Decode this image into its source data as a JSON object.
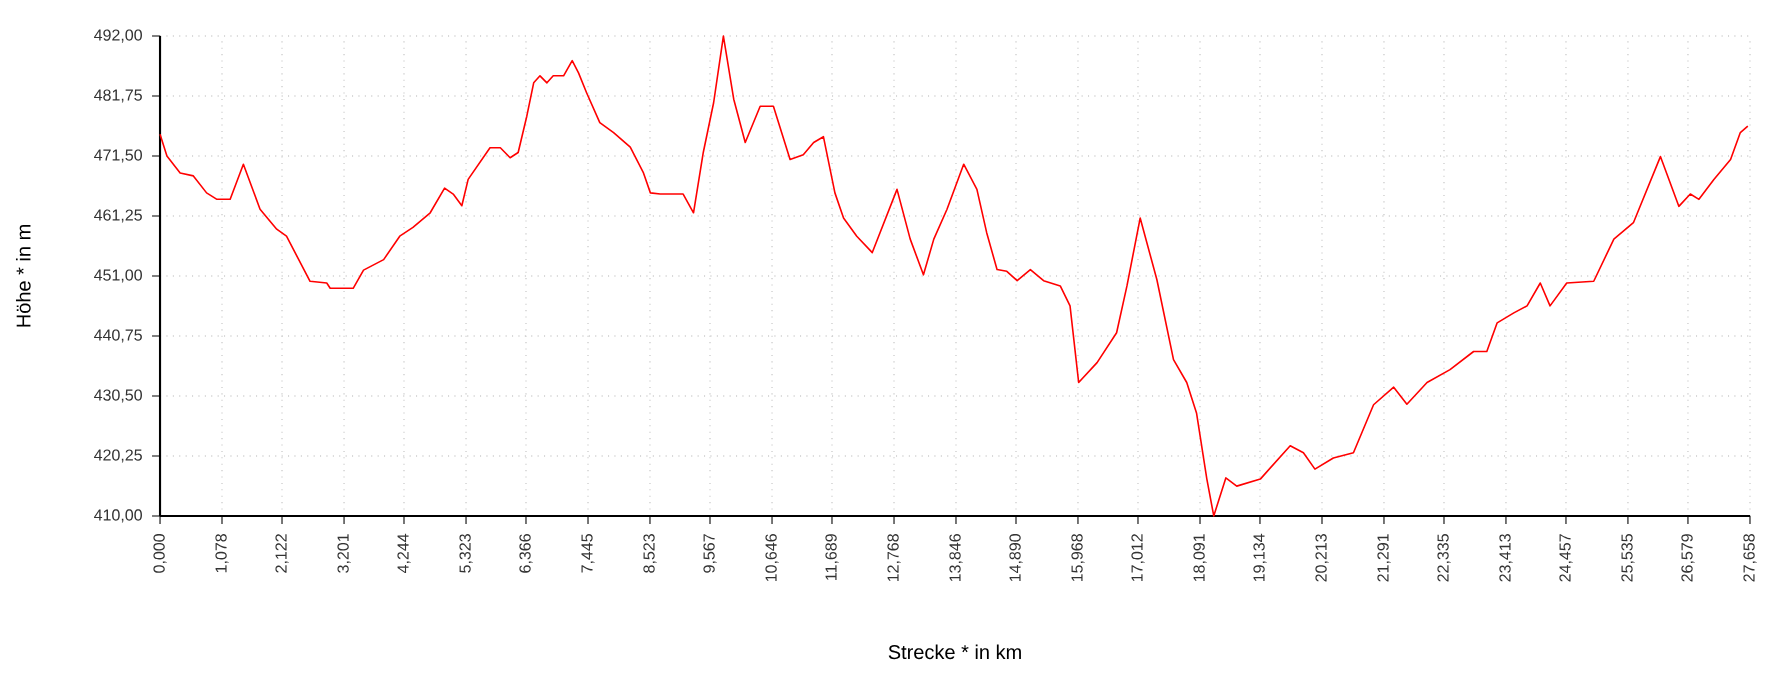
{
  "chart_data": {
    "type": "line",
    "xlabel": "Strecke *  in  km",
    "ylabel": "Höhe *  in  m",
    "xlim": [
      0,
      27.658
    ],
    "ylim": [
      410,
      492
    ],
    "xticks": [
      {
        "value": 0,
        "label": "0,000"
      },
      {
        "value": 1.078,
        "label": "1,078"
      },
      {
        "value": 2.122,
        "label": "2,122"
      },
      {
        "value": 3.201,
        "label": "3,201"
      },
      {
        "value": 4.244,
        "label": "4,244"
      },
      {
        "value": 5.323,
        "label": "5,323"
      },
      {
        "value": 6.366,
        "label": "6,366"
      },
      {
        "value": 7.445,
        "label": "7,445"
      },
      {
        "value": 8.523,
        "label": "8,523"
      },
      {
        "value": 9.567,
        "label": "9,567"
      },
      {
        "value": 10.646,
        "label": "10,646"
      },
      {
        "value": 11.689,
        "label": "11,689"
      },
      {
        "value": 12.768,
        "label": "12,768"
      },
      {
        "value": 13.846,
        "label": "13,846"
      },
      {
        "value": 14.89,
        "label": "14,890"
      },
      {
        "value": 15.968,
        "label": "15,968"
      },
      {
        "value": 17.012,
        "label": "17,012"
      },
      {
        "value": 18.091,
        "label": "18,091"
      },
      {
        "value": 19.134,
        "label": "19,134"
      },
      {
        "value": 20.213,
        "label": "20,213"
      },
      {
        "value": 21.291,
        "label": "21,291"
      },
      {
        "value": 22.335,
        "label": "22,335"
      },
      {
        "value": 23.413,
        "label": "23,413"
      },
      {
        "value": 24.457,
        "label": "24,457"
      },
      {
        "value": 25.535,
        "label": "25,535"
      },
      {
        "value": 26.579,
        "label": "26,579"
      },
      {
        "value": 27.658,
        "label": "27,658"
      }
    ],
    "yticks": [
      {
        "value": 410,
        "label": "410,00"
      },
      {
        "value": 420.25,
        "label": "420,25"
      },
      {
        "value": 430.5,
        "label": "430,50"
      },
      {
        "value": 440.75,
        "label": "440,75"
      },
      {
        "value": 451,
        "label": "451,00"
      },
      {
        "value": 461.25,
        "label": "461,25"
      },
      {
        "value": 471.5,
        "label": "471,50"
      },
      {
        "value": 481.75,
        "label": "481,75"
      },
      {
        "value": 492,
        "label": "492,00"
      }
    ],
    "grid": true,
    "marker": "none",
    "line_style": "solid",
    "series": [
      {
        "color": "#ff0000",
        "x": [
          0,
          0.12,
          0.35,
          0.58,
          0.81,
          0.99,
          1.22,
          1.45,
          1.74,
          2.03,
          2.2,
          2.61,
          2.9,
          2.96,
          3.36,
          3.54,
          3.89,
          4.17,
          4.4,
          4.7,
          4.95,
          5.1,
          5.25,
          5.36,
          5.74,
          5.92,
          6.09,
          6.23,
          6.38,
          6.5,
          6.61,
          6.73,
          6.84,
          7.02,
          7.17,
          7.28,
          7.42,
          7.65,
          7.89,
          8.18,
          8.41,
          8.53,
          8.7,
          9.1,
          9.28,
          9.45,
          9.63,
          9.8,
          9.98,
          10.18,
          10.44,
          10.67,
          10.96,
          11.19,
          11.37,
          11.54,
          11.74,
          11.89,
          12.12,
          12.39,
          12.82,
          13.05,
          13.28,
          13.46,
          13.69,
          13.98,
          14.21,
          14.38,
          14.56,
          14.73,
          14.91,
          15.14,
          15.37,
          15.66,
          15.83,
          15.98,
          16.3,
          16.64,
          16.82,
          17.05,
          17.34,
          17.63,
          17.86,
          18.03,
          18.21,
          18.33,
          18.54,
          18.73,
          19.14,
          19.66,
          19.89,
          20.09,
          20.41,
          20.76,
          21.11,
          21.46,
          21.69,
          22.04,
          22.44,
          22.85,
          23.08,
          23.26,
          23.55,
          23.78,
          24.01,
          24.18,
          24.47,
          24.94,
          25.29,
          25.63,
          26.1,
          26.42,
          26.62,
          26.77,
          27.03,
          27.32,
          27.49,
          27.62
        ],
        "values": [
          475.2,
          471.5,
          468.6,
          468.1,
          465.2,
          464.1,
          464.1,
          470.1,
          462.4,
          459,
          457.8,
          450.1,
          449.8,
          448.9,
          448.9,
          452,
          453.8,
          457.8,
          459.3,
          461.8,
          466,
          465,
          463,
          467.5,
          472.9,
          472.9,
          471.2,
          472.1,
          478.3,
          484,
          485.2,
          484,
          485.2,
          485.2,
          487.8,
          485.7,
          482.3,
          477.2,
          475.5,
          473,
          468.6,
          465.2,
          465,
          465,
          461.8,
          472.1,
          480.6,
          492,
          481.2,
          473.8,
          480,
          480,
          470.9,
          471.7,
          473.8,
          474.8,
          465.2,
          460.9,
          457.8,
          455,
          465.8,
          457.3,
          451.2,
          457.3,
          462.4,
          470.1,
          465.8,
          458.4,
          452.1,
          451.8,
          450.2,
          452.1,
          450.2,
          449.3,
          445.9,
          432.8,
          436.2,
          441.3,
          449.3,
          460.9,
          450.4,
          436.7,
          432.8,
          427.6,
          416.3,
          410,
          416.5,
          415.1,
          416.3,
          422,
          420.8,
          418,
          419.9,
          420.8,
          429,
          432,
          429.1,
          432.8,
          435,
          438.1,
          438.1,
          443,
          444.7,
          445.9,
          449.8,
          445.9,
          449.8,
          450.1,
          457.3,
          460.1,
          471.4,
          462.9,
          465,
          464.1,
          467.5,
          470.9,
          475.5,
          476.6
        ]
      }
    ]
  }
}
